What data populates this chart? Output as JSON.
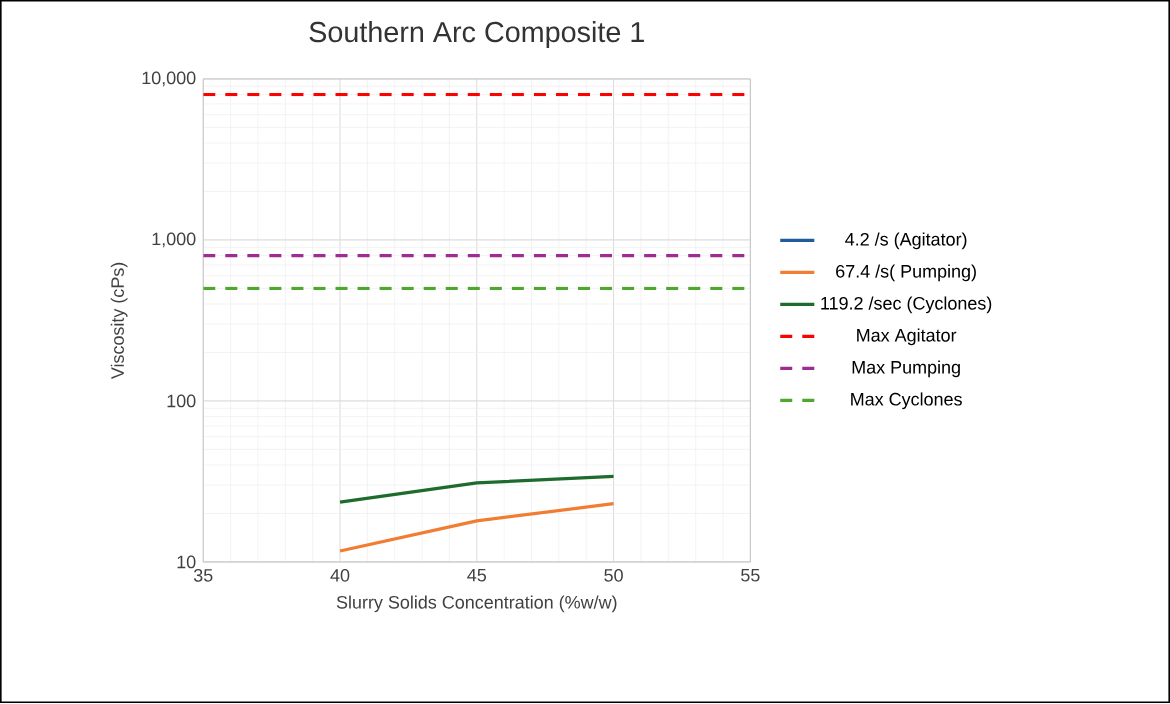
{
  "chart_data": {
    "type": "line",
    "title": "Southern Arc Composite 1",
    "xlabel": "Slurry Solids Concentration (%w/w)",
    "ylabel": "Viscosity (cPs)",
    "x": [
      40,
      45,
      50
    ],
    "series": [
      {
        "name": "4.2 /s (Agitator)",
        "color": "#1f5c99",
        "values": [
          null,
          null,
          null
        ]
      },
      {
        "name": "67.4 /s( Pumping)",
        "color": "#f07d32",
        "values": [
          11.7,
          18,
          23
        ]
      },
      {
        "name": "119.2 /sec (Cyclones)",
        "color": "#1e6b2e",
        "values": [
          23.5,
          31,
          34
        ]
      }
    ],
    "ref_lines": [
      {
        "axis": "y",
        "value": 8000,
        "label": "Max Agitator",
        "color": "#ff0000",
        "line_style": "dashed"
      },
      {
        "axis": "y",
        "value": 800,
        "label": "Max Pumping",
        "color": "#a02b93",
        "line_style": "dashed"
      },
      {
        "axis": "y",
        "value": 500,
        "label": "Max Cyclones",
        "color": "#4ea72e",
        "line_style": "dashed"
      }
    ],
    "xlim": [
      35,
      55
    ],
    "xticks": [
      35,
      40,
      45,
      50,
      55
    ],
    "ylim": [
      10,
      10000
    ],
    "yticks": [
      10,
      100,
      {
        "value": 1000,
        "label": "1,000"
      },
      {
        "value": 10000,
        "label": "10,000"
      }
    ],
    "log": "y",
    "grid": true,
    "legend": "right",
    "line_style": "solid",
    "marker": "none"
  }
}
